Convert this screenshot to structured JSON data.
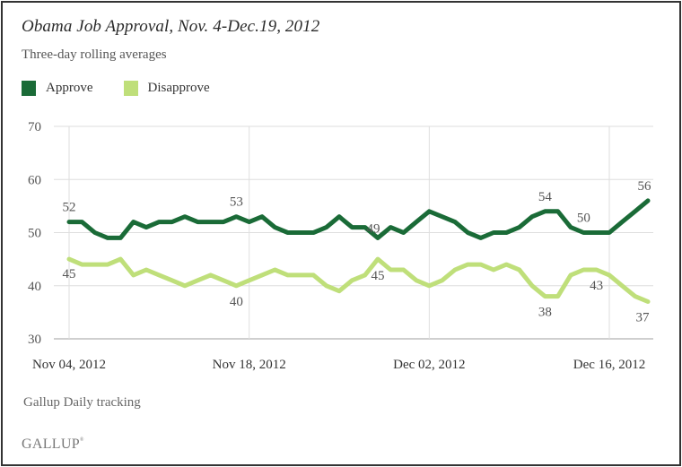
{
  "chart_data": {
    "type": "line",
    "title": "Obama Job Approval, Nov. 4-Dec.19, 2012",
    "subtitle": "Three-day rolling averages",
    "xlabel": "",
    "ylabel": "",
    "ylim": [
      30,
      70
    ],
    "yticks": [
      "70",
      "60",
      "50",
      "40",
      "30"
    ],
    "ytick_values": [
      70,
      60,
      50,
      40,
      30
    ],
    "xticks": [
      "Nov 04, 2012",
      "Nov 18, 2012",
      "Dec 02, 2012",
      "Dec 16, 2012"
    ],
    "xtick_day_index": [
      0,
      14,
      28,
      42
    ],
    "x_start": "2012-11-04",
    "x_end": "2012-12-19",
    "grid": true,
    "legend_position": "top-left",
    "series": [
      {
        "name": "Approve",
        "color": "#1a6b37",
        "values": [
          52,
          52,
          50,
          49,
          49,
          52,
          51,
          52,
          52,
          53,
          52,
          52,
          52,
          53,
          52,
          53,
          51,
          50,
          50,
          50,
          51,
          53,
          51,
          51,
          49,
          51,
          50,
          52,
          54,
          53,
          52,
          50,
          49,
          50,
          50,
          51,
          53,
          54,
          54,
          51,
          50,
          50,
          50,
          52,
          54,
          56
        ],
        "labels": [
          {
            "index": 0,
            "text": "52"
          },
          {
            "index": 13,
            "text": "53"
          },
          {
            "index": 24,
            "text": "49"
          },
          {
            "index": 37,
            "text": "54"
          },
          {
            "index": 40,
            "text": "50"
          },
          {
            "index": 45,
            "text": "56"
          }
        ]
      },
      {
        "name": "Disapprove",
        "color": "#bfdf7a",
        "values": [
          45,
          44,
          44,
          44,
          45,
          42,
          43,
          42,
          41,
          40,
          41,
          42,
          41,
          40,
          41,
          42,
          43,
          42,
          42,
          42,
          40,
          39,
          41,
          42,
          45,
          43,
          43,
          41,
          40,
          41,
          43,
          44,
          44,
          43,
          44,
          43,
          40,
          38,
          38,
          42,
          43,
          43,
          42,
          40,
          38,
          37
        ],
        "labels": [
          {
            "index": 0,
            "text": "45"
          },
          {
            "index": 13,
            "text": "40"
          },
          {
            "index": 24,
            "text": "45"
          },
          {
            "index": 37,
            "text": "38"
          },
          {
            "index": 41,
            "text": "43"
          },
          {
            "index": 45,
            "text": "37"
          }
        ]
      }
    ]
  },
  "legend": [
    {
      "label": "Approve",
      "color": "#1a6b37"
    },
    {
      "label": "Disapprove",
      "color": "#bfdf7a"
    }
  ],
  "footer": {
    "source": "Gallup Daily tracking",
    "logo": "GALLUP",
    "logo_mark": "®"
  }
}
